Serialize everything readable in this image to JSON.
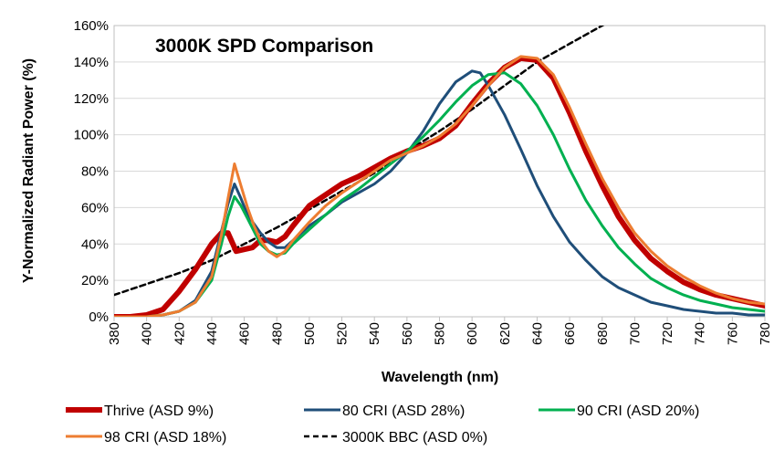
{
  "chart_data": {
    "type": "line",
    "title": "3000K SPD Comparison",
    "xlabel": "Wavelength (nm)",
    "ylabel": "Y-Normalized Radiant Power (%)",
    "xlim": [
      380,
      780
    ],
    "ylim": [
      0,
      160
    ],
    "x_ticks": [
      "380",
      "400",
      "420",
      "440",
      "460",
      "480",
      "500",
      "520",
      "540",
      "560",
      "580",
      "600",
      "620",
      "640",
      "660",
      "680",
      "700",
      "720",
      "740",
      "760",
      "780"
    ],
    "y_ticks": [
      "0%",
      "20%",
      "40%",
      "60%",
      "80%",
      "100%",
      "120%",
      "140%",
      "160%"
    ],
    "grid": "horizontal",
    "legend_position": "bottom",
    "series": [
      {
        "name": "Thrive (ASD 9%)",
        "color": "#c00000",
        "style": "solid-thick",
        "points": [
          [
            380,
            0
          ],
          [
            390,
            0
          ],
          [
            400,
            1
          ],
          [
            410,
            4
          ],
          [
            420,
            14
          ],
          [
            430,
            26
          ],
          [
            440,
            40
          ],
          [
            446,
            46
          ],
          [
            450,
            46
          ],
          [
            455,
            36
          ],
          [
            460,
            37
          ],
          [
            465,
            38
          ],
          [
            470,
            42
          ],
          [
            475,
            42
          ],
          [
            480,
            41
          ],
          [
            485,
            44
          ],
          [
            490,
            50
          ],
          [
            500,
            61
          ],
          [
            510,
            67
          ],
          [
            520,
            73
          ],
          [
            530,
            77
          ],
          [
            540,
            82
          ],
          [
            550,
            87
          ],
          [
            560,
            91
          ],
          [
            570,
            94
          ],
          [
            580,
            98
          ],
          [
            590,
            105
          ],
          [
            600,
            117
          ],
          [
            610,
            128
          ],
          [
            620,
            137
          ],
          [
            630,
            142
          ],
          [
            640,
            141
          ],
          [
            650,
            131
          ],
          [
            660,
            112
          ],
          [
            670,
            91
          ],
          [
            680,
            72
          ],
          [
            690,
            55
          ],
          [
            700,
            42
          ],
          [
            710,
            32
          ],
          [
            720,
            25
          ],
          [
            730,
            19
          ],
          [
            740,
            15
          ],
          [
            750,
            12
          ],
          [
            760,
            10
          ],
          [
            770,
            8
          ],
          [
            780,
            6
          ]
        ]
      },
      {
        "name": "80 CRI (ASD 28%)",
        "color": "#1f4e79",
        "style": "solid",
        "points": [
          [
            380,
            0
          ],
          [
            400,
            0
          ],
          [
            410,
            1
          ],
          [
            420,
            3
          ],
          [
            430,
            9
          ],
          [
            440,
            25
          ],
          [
            446,
            47
          ],
          [
            450,
            62
          ],
          [
            454,
            73
          ],
          [
            458,
            65
          ],
          [
            462,
            56
          ],
          [
            466,
            51
          ],
          [
            470,
            46
          ],
          [
            475,
            41
          ],
          [
            480,
            38
          ],
          [
            485,
            38
          ],
          [
            490,
            42
          ],
          [
            500,
            50
          ],
          [
            510,
            56
          ],
          [
            520,
            63
          ],
          [
            530,
            68
          ],
          [
            540,
            73
          ],
          [
            550,
            80
          ],
          [
            560,
            90
          ],
          [
            570,
            102
          ],
          [
            580,
            117
          ],
          [
            590,
            129
          ],
          [
            600,
            135
          ],
          [
            605,
            134
          ],
          [
            610,
            127
          ],
          [
            620,
            111
          ],
          [
            630,
            92
          ],
          [
            640,
            72
          ],
          [
            650,
            55
          ],
          [
            660,
            41
          ],
          [
            670,
            31
          ],
          [
            680,
            22
          ],
          [
            690,
            16
          ],
          [
            700,
            12
          ],
          [
            710,
            8
          ],
          [
            720,
            6
          ],
          [
            730,
            4
          ],
          [
            740,
            3
          ],
          [
            750,
            2
          ],
          [
            760,
            2
          ],
          [
            770,
            1
          ],
          [
            780,
            1
          ]
        ]
      },
      {
        "name": "90 CRI (ASD 20%)",
        "color": "#00b050",
        "style": "solid",
        "points": [
          [
            380,
            0
          ],
          [
            400,
            0
          ],
          [
            410,
            1
          ],
          [
            420,
            3
          ],
          [
            430,
            8
          ],
          [
            440,
            20
          ],
          [
            446,
            40
          ],
          [
            450,
            55
          ],
          [
            454,
            66
          ],
          [
            458,
            61
          ],
          [
            462,
            54
          ],
          [
            466,
            47
          ],
          [
            470,
            40
          ],
          [
            475,
            36
          ],
          [
            480,
            34
          ],
          [
            485,
            35
          ],
          [
            490,
            40
          ],
          [
            500,
            48
          ],
          [
            510,
            56
          ],
          [
            520,
            64
          ],
          [
            530,
            70
          ],
          [
            540,
            77
          ],
          [
            550,
            84
          ],
          [
            560,
            91
          ],
          [
            570,
            99
          ],
          [
            580,
            108
          ],
          [
            590,
            118
          ],
          [
            600,
            127
          ],
          [
            610,
            133
          ],
          [
            620,
            134
          ],
          [
            630,
            128
          ],
          [
            640,
            116
          ],
          [
            650,
            100
          ],
          [
            660,
            81
          ],
          [
            670,
            64
          ],
          [
            680,
            50
          ],
          [
            690,
            38
          ],
          [
            700,
            29
          ],
          [
            710,
            21
          ],
          [
            720,
            16
          ],
          [
            730,
            12
          ],
          [
            740,
            9
          ],
          [
            750,
            7
          ],
          [
            760,
            5
          ],
          [
            770,
            4
          ],
          [
            780,
            3
          ]
        ]
      },
      {
        "name": "98 CRI (ASD 18%)",
        "color": "#ed7d31",
        "style": "solid",
        "points": [
          [
            380,
            0
          ],
          [
            400,
            0
          ],
          [
            410,
            1
          ],
          [
            420,
            3
          ],
          [
            430,
            8
          ],
          [
            440,
            22
          ],
          [
            446,
            45
          ],
          [
            450,
            65
          ],
          [
            454,
            84
          ],
          [
            458,
            72
          ],
          [
            462,
            60
          ],
          [
            466,
            50
          ],
          [
            470,
            42
          ],
          [
            475,
            36
          ],
          [
            480,
            33
          ],
          [
            485,
            36
          ],
          [
            490,
            42
          ],
          [
            500,
            52
          ],
          [
            510,
            61
          ],
          [
            520,
            68
          ],
          [
            530,
            74
          ],
          [
            540,
            80
          ],
          [
            550,
            86
          ],
          [
            560,
            90
          ],
          [
            570,
            94
          ],
          [
            580,
            99
          ],
          [
            590,
            106
          ],
          [
            600,
            116
          ],
          [
            610,
            127
          ],
          [
            620,
            137
          ],
          [
            630,
            143
          ],
          [
            640,
            142
          ],
          [
            650,
            133
          ],
          [
            660,
            115
          ],
          [
            670,
            95
          ],
          [
            680,
            76
          ],
          [
            690,
            60
          ],
          [
            700,
            46
          ],
          [
            710,
            36
          ],
          [
            720,
            28
          ],
          [
            730,
            22
          ],
          [
            740,
            17
          ],
          [
            750,
            13
          ],
          [
            760,
            10
          ],
          [
            770,
            8
          ],
          [
            780,
            7
          ]
        ]
      },
      {
        "name": "3000K BBC (ASD 0%)",
        "color": "#000000",
        "style": "dashed",
        "points": [
          [
            380,
            12
          ],
          [
            400,
            18
          ],
          [
            420,
            24
          ],
          [
            440,
            31
          ],
          [
            460,
            40
          ],
          [
            480,
            49
          ],
          [
            500,
            59
          ],
          [
            520,
            69
          ],
          [
            540,
            79
          ],
          [
            560,
            91
          ],
          [
            580,
            102
          ],
          [
            600,
            114
          ],
          [
            620,
            127
          ],
          [
            640,
            140
          ],
          [
            660,
            150
          ],
          [
            680,
            160
          ],
          [
            700,
            170
          ]
        ]
      }
    ]
  }
}
